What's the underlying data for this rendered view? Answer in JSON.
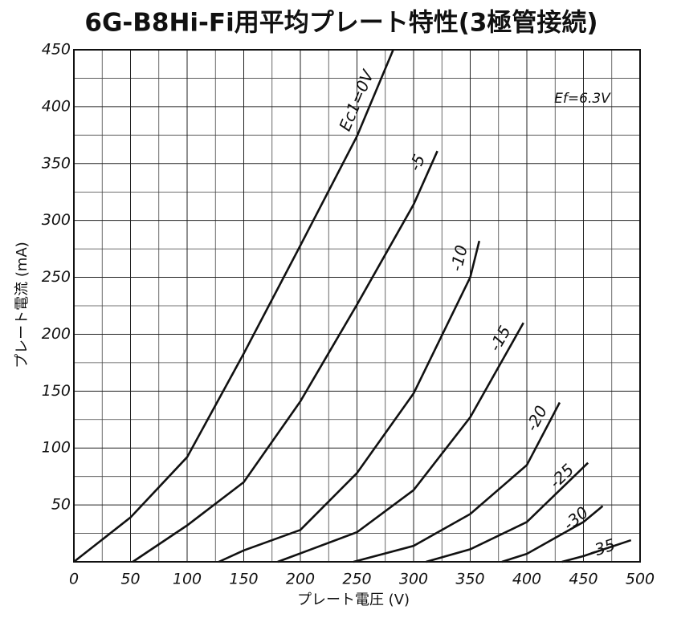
{
  "chart_data": {
    "type": "line",
    "title": "6G-B8Hi-Fi用平均プレート特性(3極管接続)",
    "x_label": "プレート電圧 (V)",
    "y_label": "プレート電流 (mA)",
    "annotation": "Ef=6.3V",
    "xlim": [
      0,
      500
    ],
    "ylim": [
      0,
      450
    ],
    "xticks": [
      0,
      50,
      100,
      150,
      200,
      250,
      300,
      350,
      400,
      450,
      500
    ],
    "yticks": [
      50,
      100,
      150,
      200,
      250,
      300,
      350,
      400,
      450
    ],
    "grid": true,
    "series": [
      {
        "name": "Ec1=0V",
        "color": "#111111",
        "x": [
          0,
          50,
          100,
          150,
          200,
          250,
          282
        ],
        "values": [
          0,
          39,
          92,
          183,
          278,
          374,
          450
        ]
      },
      {
        "name": "-5",
        "color": "#111111",
        "x": [
          52,
          100,
          150,
          200,
          250,
          300,
          321
        ],
        "values": [
          0,
          32,
          70,
          141,
          226,
          314,
          361
        ]
      },
      {
        "name": "-10",
        "color": "#111111",
        "x": [
          128,
          150,
          200,
          250,
          300,
          350,
          358
        ],
        "values": [
          0,
          10,
          28,
          78,
          148,
          250,
          282
        ]
      },
      {
        "name": "-15",
        "color": "#111111",
        "x": [
          180,
          250,
          300,
          350,
          397
        ],
        "values": [
          0,
          26,
          63,
          127,
          210
        ]
      },
      {
        "name": "-20",
        "color": "#111111",
        "x": [
          247,
          300,
          350,
          400,
          429
        ],
        "values": [
          0,
          14,
          42,
          85,
          140
        ]
      },
      {
        "name": "-25",
        "color": "#111111",
        "x": [
          311,
          350,
          400,
          454
        ],
        "values": [
          0,
          11,
          35,
          87
        ]
      },
      {
        "name": "-30",
        "color": "#111111",
        "x": [
          378,
          400,
          450,
          467
        ],
        "values": [
          0,
          7,
          35,
          49
        ]
      },
      {
        "name": "-35",
        "color": "#111111",
        "x": [
          431,
          450,
          492
        ],
        "values": [
          0,
          5,
          19
        ]
      }
    ]
  }
}
